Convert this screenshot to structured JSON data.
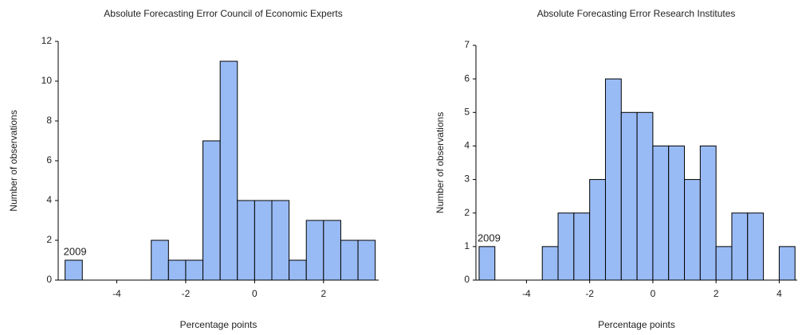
{
  "chart_data": [
    {
      "type": "histogram",
      "title": "Absolute Forecasting Error Council of Economic Experts",
      "x_label": "Percentage points",
      "y_label": "Number of observations",
      "bins": [
        -5.5,
        -5,
        -4.5,
        -4,
        -3.5,
        -3,
        -2.5,
        -2,
        -1.5,
        -1,
        -0.5,
        0,
        0.5,
        1,
        1.5,
        2,
        2.5,
        3,
        3.5
      ],
      "counts": [
        1,
        0,
        0,
        0,
        0,
        2,
        1,
        1,
        7,
        11,
        4,
        4,
        4,
        1,
        3,
        3,
        2,
        2
      ],
      "color": "#99bbf5",
      "annotation": "2009",
      "xlim": [
        -5.7,
        3.6
      ],
      "ylim": [
        0,
        12
      ],
      "xticks": [
        -4,
        -2,
        0,
        2
      ],
      "yticks": [
        0,
        2,
        4,
        6,
        8,
        10,
        12
      ]
    },
    {
      "type": "histogram",
      "title": "Absolute Forecasting Error Research Institutes",
      "x_label": "Percentage points",
      "y_label": "Number of observations",
      "bins": [
        -5.5,
        -5,
        -4.5,
        -4,
        -3.5,
        -3,
        -2.5,
        -2,
        -1.5,
        -1,
        -0.5,
        0,
        0.5,
        1,
        1.5,
        2,
        2.5,
        3,
        3.5,
        4,
        4.5
      ],
      "counts": [
        1,
        0,
        0,
        0,
        1,
        2,
        2,
        3,
        6,
        5,
        5,
        4,
        4,
        3,
        4,
        1,
        2,
        2,
        0,
        1
      ],
      "color": "#99bbf5",
      "annotation": "2009",
      "xlim": [
        -5.6,
        4.57
      ],
      "ylim": [
        0,
        7
      ],
      "xticks": [
        -4,
        -2,
        0,
        2,
        4
      ],
      "yticks": [
        0,
        1,
        2,
        3,
        4,
        5,
        6,
        7
      ]
    }
  ]
}
